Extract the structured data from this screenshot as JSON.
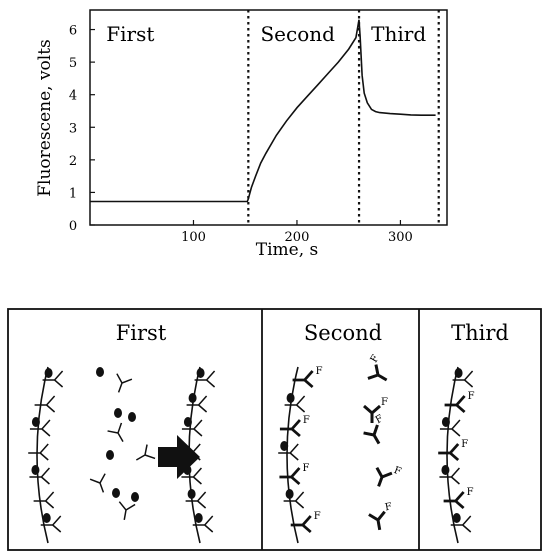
{
  "chart_data": {
    "type": "line",
    "title": "",
    "xlabel": "Time, s",
    "ylabel": "Fluorescene, volts",
    "xlim": [
      0,
      345
    ],
    "ylim": [
      0,
      6.6
    ],
    "x_ticks": [
      100,
      200,
      300
    ],
    "y_ticks": [
      0,
      1,
      2,
      3,
      4,
      5,
      6
    ],
    "grid": false,
    "phase_labels": [
      "First",
      "Second",
      "Third"
    ],
    "phase_boundaries": [
      153,
      260,
      337
    ],
    "series": [
      {
        "x": [
          0,
          100,
          152,
          153,
          156,
          160,
          165,
          170,
          180,
          190,
          200,
          210,
          220,
          230,
          240,
          250,
          257,
          260,
          261,
          262,
          263,
          265,
          268,
          272,
          276,
          280,
          290,
          300,
          310,
          320,
          334
        ],
        "y": [
          0.72,
          0.72,
          0.72,
          0.8,
          1.15,
          1.5,
          1.9,
          2.2,
          2.75,
          3.2,
          3.6,
          3.95,
          4.3,
          4.65,
          5.0,
          5.4,
          5.75,
          6.3,
          5.8,
          5.2,
          4.6,
          4.05,
          3.75,
          3.55,
          3.48,
          3.45,
          3.42,
          3.4,
          3.38,
          3.37,
          3.37
        ]
      }
    ]
  },
  "schematic": {
    "panel_titles": [
      "First",
      "Second",
      "Third"
    ],
    "fluor_label": "F"
  }
}
